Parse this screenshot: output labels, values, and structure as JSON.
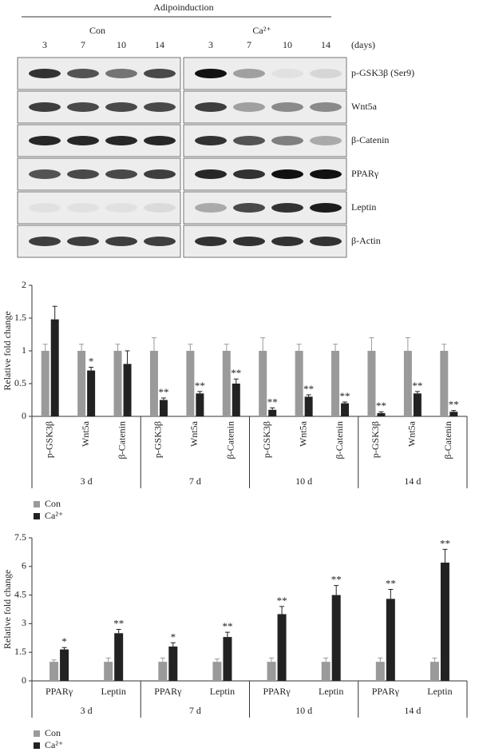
{
  "blot": {
    "title": "Adipoinduction",
    "groups": [
      "Con",
      "Ca²⁺"
    ],
    "days": [
      "3",
      "7",
      "10",
      "14"
    ],
    "days_unit": "(days)",
    "proteins": [
      "p-GSK3β (Ser9)",
      "Wnt5a",
      "β-Catenin",
      "PPARγ",
      "Leptin",
      "β-Actin"
    ]
  },
  "chart_data": [
    {
      "type": "bar",
      "ylabel": "Relative fold change",
      "groups": [
        "3 d",
        "7 d",
        "10 d",
        "14 d"
      ],
      "categories": [
        "p-GSK3β",
        "Wnt5a",
        "β-Catenin",
        "p-GSK3β",
        "Wnt5a",
        "β-Catenin",
        "p-GSK3β",
        "Wnt5a",
        "β-Catenin",
        "p-GSK3β",
        "Wnt5a",
        "β-Catenin"
      ],
      "series": [
        {
          "name": "Con",
          "color": "#9a9a9a",
          "values": [
            1,
            1,
            1,
            1,
            1,
            1,
            1,
            1,
            1,
            1,
            1,
            1
          ],
          "errors": [
            0.1,
            0.1,
            0.1,
            0.2,
            0.1,
            0.1,
            0.2,
            0.1,
            0.1,
            0.2,
            0.2,
            0.1
          ]
        },
        {
          "name": "Ca²⁺",
          "color": "#222222",
          "values": [
            1.48,
            0.7,
            0.8,
            0.25,
            0.35,
            0.5,
            0.1,
            0.3,
            0.2,
            0.05,
            0.35,
            0.07
          ],
          "errors": [
            0.2,
            0.05,
            0.2,
            0.03,
            0.03,
            0.07,
            0.03,
            0.03,
            0.02,
            0.02,
            0.03,
            0.02
          ],
          "significance": [
            null,
            "*",
            null,
            "**",
            "**",
            "**",
            "**",
            "**",
            "**",
            "**",
            "**",
            "**"
          ]
        }
      ],
      "ylim": [
        0,
        2
      ],
      "yticks": [
        0,
        0.5,
        1,
        1.5,
        2
      ],
      "legend": "bottom-left"
    },
    {
      "type": "bar",
      "ylabel": "Relative fold change",
      "groups": [
        "3 d",
        "7 d",
        "10 d",
        "14 d"
      ],
      "categories": [
        "PPARγ",
        "Leptin",
        "PPARγ",
        "Leptin",
        "PPARγ",
        "Leptin",
        "PPARγ",
        "Leptin"
      ],
      "series": [
        {
          "name": "Con",
          "color": "#9a9a9a",
          "values": [
            1,
            1,
            1,
            1,
            1,
            1,
            1,
            1
          ],
          "errors": [
            0.1,
            0.2,
            0.2,
            0.15,
            0.2,
            0.2,
            0.2,
            0.2
          ]
        },
        {
          "name": "Ca²⁺",
          "color": "#222222",
          "values": [
            1.65,
            2.5,
            1.8,
            2.3,
            3.5,
            4.5,
            4.3,
            6.2
          ],
          "errors": [
            0.1,
            0.2,
            0.2,
            0.25,
            0.4,
            0.5,
            0.5,
            0.7
          ],
          "significance": [
            "*",
            "**",
            "*",
            "**",
            "**",
            "**",
            "**",
            "**"
          ]
        }
      ],
      "ylim": [
        0,
        7.5
      ],
      "yticks": [
        0,
        1.5,
        3,
        4.5,
        6,
        7.5
      ],
      "legend": "bottom-left"
    }
  ]
}
